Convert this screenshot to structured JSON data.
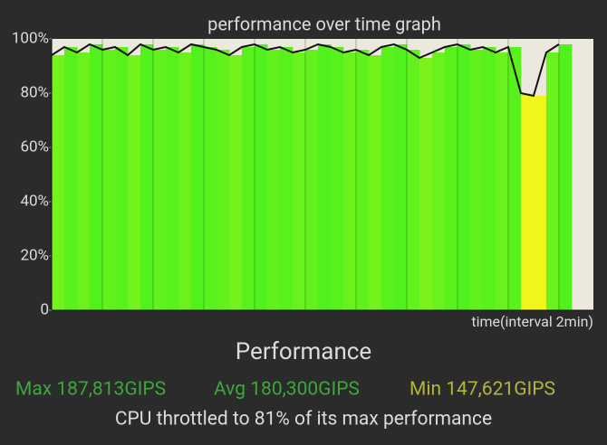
{
  "chart_data": {
    "type": "area",
    "title": "performance over time graph",
    "xlabel": "time(interval 2min)",
    "x": [
      0,
      0.5,
      1,
      1.5,
      2,
      2.5,
      3,
      3.5,
      4,
      4.5,
      5,
      5.5,
      6,
      6.5,
      7,
      7.5,
      8,
      8.5,
      9,
      9.5,
      10,
      10.5,
      11,
      11.5,
      12,
      12.5,
      13,
      13.5,
      14,
      14.5,
      15,
      15.5,
      16,
      16.5,
      17,
      17.5,
      18,
      18.5,
      19,
      19.5,
      20
    ],
    "values": [
      94,
      97,
      95,
      98,
      96,
      97,
      94,
      98,
      96,
      97,
      95,
      98,
      97,
      96,
      94,
      97,
      98,
      96,
      97,
      95,
      96,
      98,
      97,
      95,
      96,
      94,
      97,
      98,
      96,
      93,
      95,
      97,
      98,
      96,
      97,
      95,
      97,
      80,
      79,
      95,
      98
    ],
    "line_color": "#111111",
    "fill_high": "#3ef01c",
    "fill_low": "#f0f51c",
    "background": "#ece8dd",
    "xlim": [
      0,
      21.36
    ],
    "xticks": [
      2,
      4,
      6,
      8,
      10,
      12,
      14,
      16,
      18,
      20
    ],
    "ylim": [
      0,
      100
    ],
    "yticks": [
      0,
      {
        "value": 20,
        "label": "20%"
      },
      {
        "value": 40,
        "label": "40%"
      },
      {
        "value": 60,
        "label": "60%"
      },
      {
        "value": 80,
        "label": "80%"
      },
      {
        "value": 100,
        "label": "100%"
      }
    ],
    "grid": true
  },
  "summary": {
    "heading": "Performance",
    "max": "Max 187,813GIPS",
    "avg": "Avg 180,300GIPS",
    "min": "Min 147,621GIPS",
    "throttle": "CPU throttled to 81% of its max performance"
  }
}
